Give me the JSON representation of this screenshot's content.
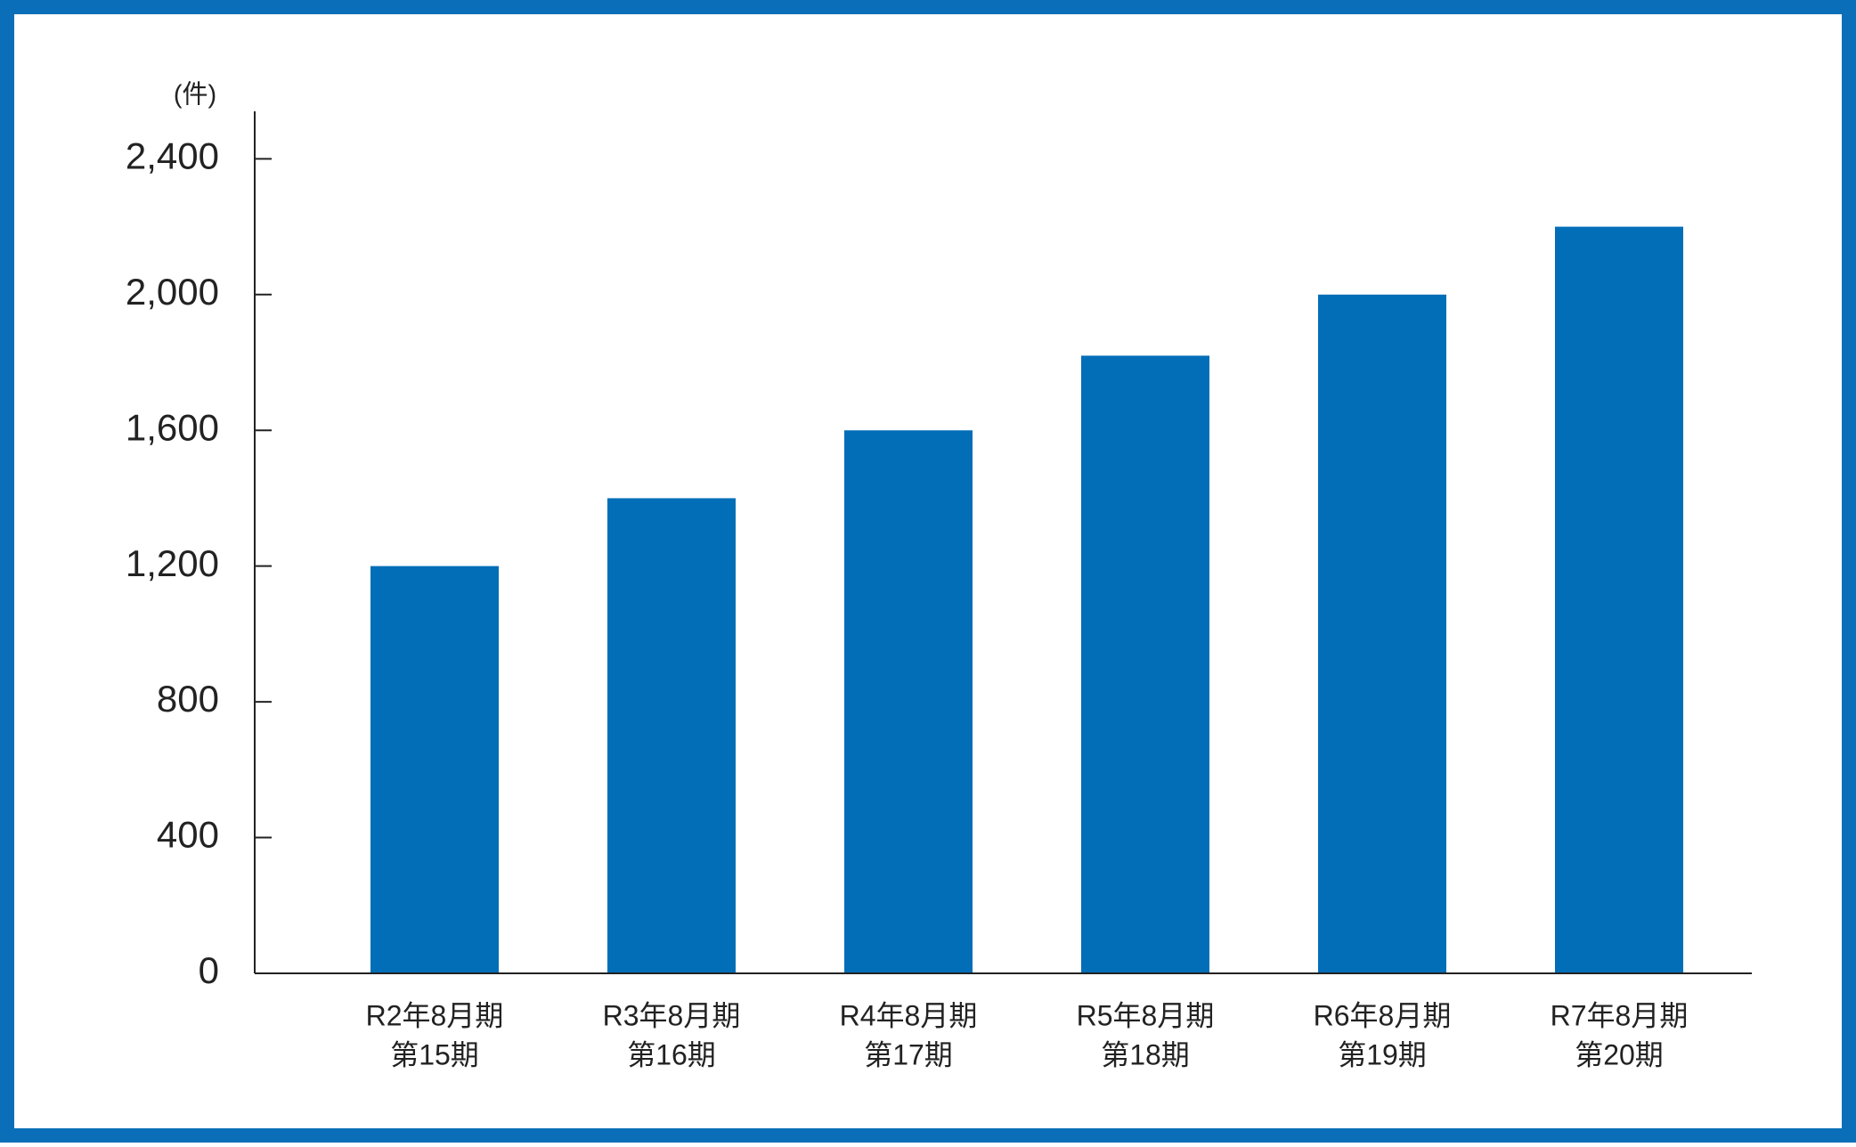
{
  "chart_data": {
    "type": "bar",
    "ylabel": "(件)",
    "categories": [
      [
        "R2年8月期",
        "第15期"
      ],
      [
        "R3年8月期",
        "第16期"
      ],
      [
        "R4年8月期",
        "第17期"
      ],
      [
        "R5年8月期",
        "第18期"
      ],
      [
        "R6年8月期",
        "第19期"
      ],
      [
        "R7年8月期",
        "第20期"
      ]
    ],
    "values": [
      1200,
      1400,
      1600,
      1820,
      2000,
      2200
    ],
    "color": "#036eb8",
    "ylim": [
      0,
      2540
    ],
    "yticks": [
      0,
      400,
      800,
      {
        "value": 1200,
        "label": "1,200"
      },
      {
        "value": 1600,
        "label": "1,600"
      },
      {
        "value": 2000,
        "label": "2,000"
      },
      {
        "value": 2400,
        "label": "2,400"
      }
    ]
  }
}
